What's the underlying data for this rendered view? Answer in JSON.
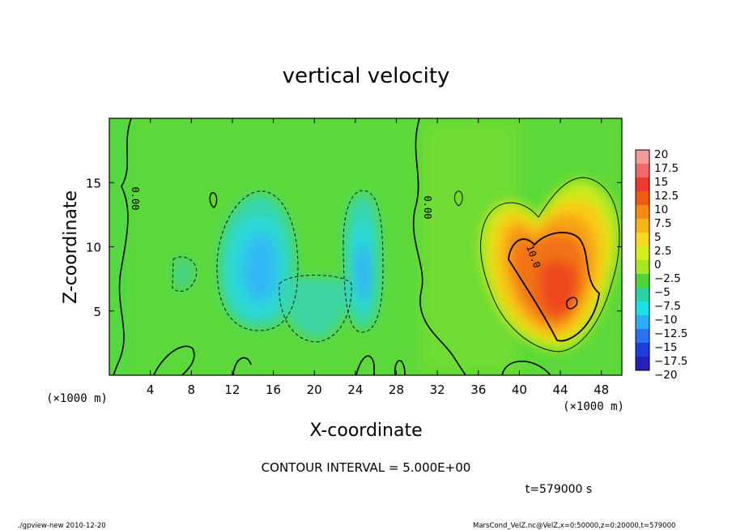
{
  "chart_data": {
    "type": "heatmap",
    "title": "vertical velocity",
    "xlabel": "X-coordinate",
    "ylabel": "Z-coordinate",
    "x_unit": "(×1000 m)",
    "y_unit": "(×1000 m)",
    "xlim": [
      0,
      50
    ],
    "ylim": [
      0,
      20
    ],
    "x_ticks": [
      4,
      8,
      12,
      16,
      20,
      24,
      28,
      32,
      36,
      40,
      44,
      48
    ],
    "y_ticks": [
      5,
      10,
      15
    ],
    "colorbar": {
      "levels": [
        "20",
        "17.5",
        "15",
        "12.5",
        "10",
        "7.5",
        "5",
        "2.5",
        "0",
        "−2.5",
        "−5",
        "−7.5",
        "−10",
        "−12.5",
        "−15",
        "−17.5",
        "−20"
      ],
      "colors": [
        "#f39a9a",
        "#f06a6a",
        "#ee3a2e",
        "#f25a12",
        "#f78a12",
        "#f9b514",
        "#fbd81e",
        "#d8ee1a",
        "#a8e620",
        "#4cd638",
        "#2bd2a4",
        "#1ae2e4",
        "#28b0ff",
        "#2a72f4",
        "#1c3ce0",
        "#2222b8",
        "#6a1ab8"
      ]
    },
    "contour_interval": "CONTOUR INTERVAL = 5.000E+00",
    "contour_labels": [
      "0.00",
      "0.00",
      "10.0"
    ],
    "features": [
      {
        "sign": "negative",
        "x": 14.5,
        "z": 8.0,
        "peak": -8
      },
      {
        "sign": "negative",
        "x": 24.5,
        "z": 7.5,
        "peak": -7
      },
      {
        "sign": "positive",
        "x": 44.5,
        "z": 6.0,
        "peak": 15
      },
      {
        "sign": "positive",
        "x": 40.5,
        "z": 9.5,
        "peak": 12
      }
    ]
  },
  "time_label": "t=579000 s",
  "footer": {
    "left": "./gpview-new   2010-12-20",
    "right": "MarsCond_VelZ.nc@VelZ,x=0:50000,z=0:20000,t=579000"
  }
}
